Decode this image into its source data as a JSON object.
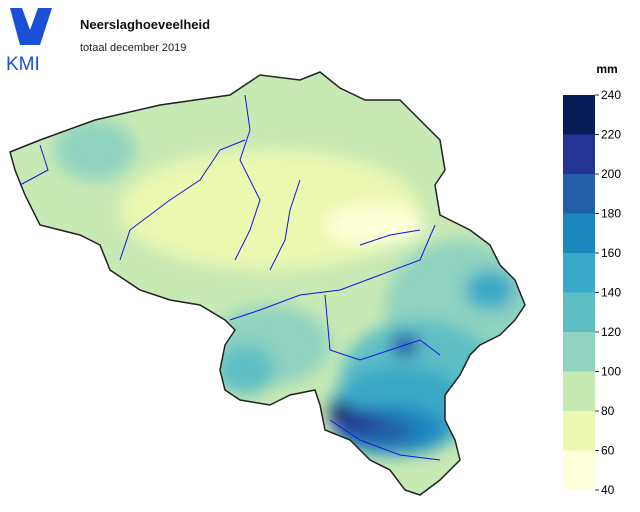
{
  "header": {
    "logo": "KMI",
    "title": "Neerslaghoeveelheid",
    "subtitle": "totaal december 2019"
  },
  "legend": {
    "unit": "mm",
    "ticks": [
      40,
      60,
      80,
      100,
      120,
      140,
      160,
      180,
      200,
      220,
      240
    ],
    "colors": [
      "#ffffd9",
      "#edf8b1",
      "#c7e9b4",
      "#8fd3c0",
      "#5dbfc4",
      "#3aa8c8",
      "#1d88be",
      "#225ea8",
      "#253494",
      "#081d58"
    ]
  }
}
